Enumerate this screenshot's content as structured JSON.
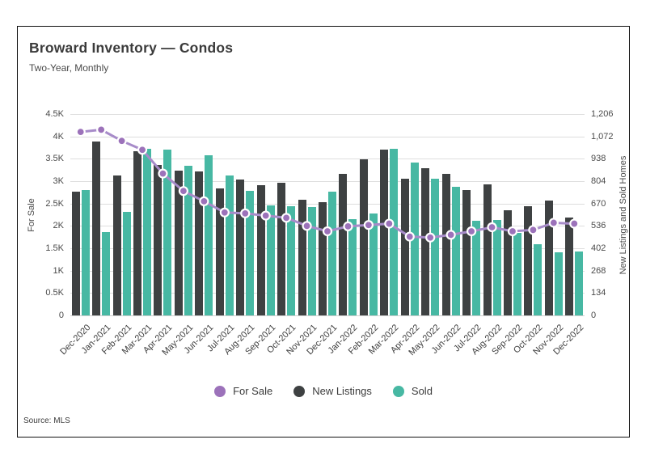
{
  "header": {
    "title": "Broward Inventory — Condos",
    "subtitle": "Two-Year, Monthly",
    "source": "Source: MLS"
  },
  "colors": {
    "for_sale": "#9c72ba",
    "for_sale_line": "#a78bc9",
    "new_listings": "#3e4142",
    "sold": "#47b8a3",
    "grid": "#dedede"
  },
  "legend": [
    {
      "label": "For Sale",
      "color": "#9c72ba"
    },
    {
      "label": "New Listings",
      "color": "#3e4142"
    },
    {
      "label": "Sold",
      "color": "#47b8a3"
    }
  ],
  "chart_data": {
    "type": "bar",
    "subtype": "dual-axis bars + line",
    "title": "Broward Inventory — Condos",
    "subtitle": "Two-Year, Monthly",
    "categories": [
      "Dec-2020",
      "Jan-2021",
      "Feb-2021",
      "Mar-2021",
      "Apr-2021",
      "May-2021",
      "Jun-2021",
      "Jul-2021",
      "Aug-2021",
      "Sep-2021",
      "Oct-2021",
      "Nov-2021",
      "Dec-2021",
      "Jan-2022",
      "Feb-2022",
      "Mar-2022",
      "Apr-2022",
      "May-2022",
      "Jun-2022",
      "Jul-2022",
      "Aug-2022",
      "Sep-2022",
      "Oct-2022",
      "Nov-2022",
      "Dec-2022"
    ],
    "series": [
      {
        "name": "For Sale",
        "type": "line",
        "axis": "left",
        "color": "#9c72ba",
        "values": [
          4100,
          4150,
          3900,
          3700,
          3170,
          2780,
          2550,
          2300,
          2280,
          2230,
          2180,
          2000,
          1880,
          1990,
          2020,
          2050,
          1760,
          1740,
          1800,
          1880,
          1970,
          1880,
          1910,
          2070,
          2050
        ]
      },
      {
        "name": "New Listings",
        "type": "bar",
        "axis": "right",
        "color": "#3e4142",
        "values": [
          740,
          1040,
          840,
          985,
          900,
          865,
          860,
          760,
          815,
          780,
          795,
          695,
          680,
          850,
          935,
          995,
          820,
          880,
          850,
          750,
          785,
          630,
          655,
          690,
          585
        ]
      },
      {
        "name": "Sold",
        "type": "bar",
        "axis": "right",
        "color": "#47b8a3",
        "values": [
          750,
          500,
          620,
          1000,
          995,
          895,
          960,
          840,
          745,
          660,
          655,
          650,
          740,
          575,
          610,
          1000,
          915,
          820,
          770,
          565,
          570,
          495,
          425,
          380,
          385
        ]
      }
    ],
    "left_axis": {
      "label": "For Sale",
      "min": 0,
      "max": 4500,
      "ticks": [
        "0",
        "0.5K",
        "1K",
        "1.5K",
        "2K",
        "2.5K",
        "3K",
        "3.5K",
        "4K",
        "4.5K"
      ]
    },
    "right_axis": {
      "label": "New Listings and Sold Homes",
      "min": 0,
      "max": 1206,
      "ticks": [
        "0",
        "134",
        "268",
        "402",
        "536",
        "670",
        "804",
        "938",
        "1,072",
        "1,206"
      ]
    },
    "grid": true,
    "legend_position": "bottom"
  }
}
